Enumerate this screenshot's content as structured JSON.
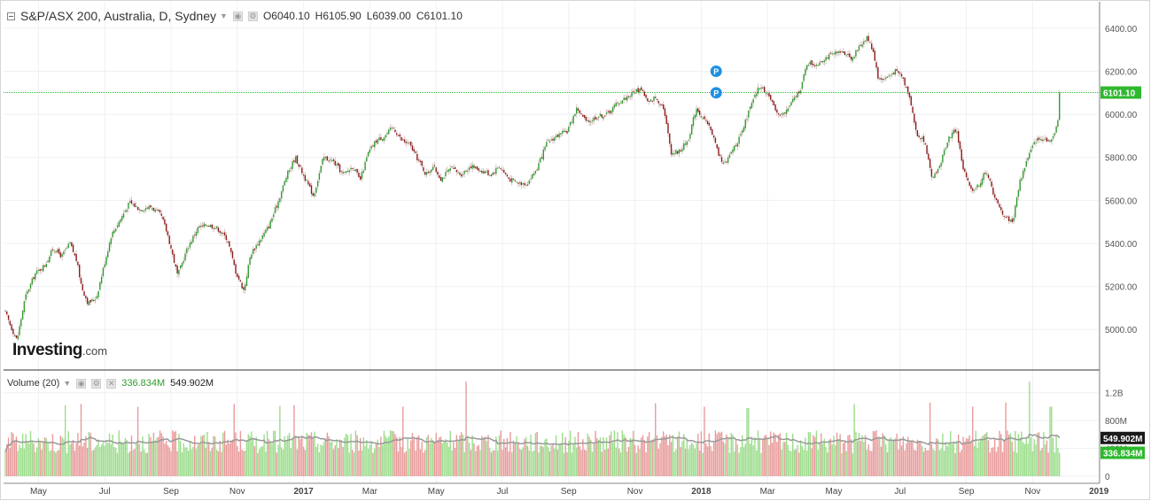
{
  "header": {
    "title": "S&P/ASX 200, Australia, D, Sydney",
    "ohlc": [
      {
        "label": "O",
        "value": "6040.10"
      },
      {
        "label": "H",
        "value": "6105.90"
      },
      {
        "label": "L",
        "value": "6039.00"
      },
      {
        "label": "C",
        "value": "6101.10"
      }
    ]
  },
  "volume_legend": {
    "title": "Volume (20)",
    "value_a": "336.834M",
    "value_b": "549.902M"
  },
  "logo": {
    "main": "Investing",
    "suffix": ".com"
  },
  "colors": {
    "up": "#2e9b2e",
    "down": "#8b1a1a",
    "vol_up": "#9bdc8b",
    "vol_down": "#e89a9a",
    "ma_line": "#999999",
    "last_price_line": "#2eb82e",
    "marker": "#1e90e0"
  },
  "chart_data": [
    {
      "type": "candlestick",
      "title": "S&P/ASX 200, Australia, D, Sydney",
      "x_labels": [
        "May",
        "Jul",
        "Sep",
        "Nov",
        "2017",
        "Mar",
        "May",
        "Jul",
        "Sep",
        "Nov",
        "2018",
        "Mar",
        "May",
        "Jul",
        "Sep",
        "Nov",
        "2019"
      ],
      "x_labels_bold": [
        "2017",
        "2018",
        "2019"
      ],
      "y_ticks": [
        5000,
        5200,
        5400,
        5600,
        5800,
        6000,
        6200,
        6400
      ],
      "y_tick_labels": [
        "5000.00",
        "5200.00",
        "5400.00",
        "5600.00",
        "5800.00",
        "6000.00",
        "6200.00",
        "6400.00"
      ],
      "ylim": [
        4820,
        6490
      ],
      "grid": true,
      "last_price": 6101.1,
      "last_price_label": "6101.10",
      "markers": [
        {
          "label": "P",
          "month_index": 21.45,
          "price": 6200
        },
        {
          "label": "P",
          "month_index": 21.45,
          "price": 6100
        }
      ],
      "price_path": [
        [
          0.0,
          5080
        ],
        [
          0.15,
          5020
        ],
        [
          0.35,
          4950
        ],
        [
          0.6,
          5150
        ],
        [
          0.9,
          5260
        ],
        [
          1.2,
          5300
        ],
        [
          1.45,
          5380
        ],
        [
          1.7,
          5340
        ],
        [
          1.95,
          5400
        ],
        [
          2.15,
          5320
        ],
        [
          2.3,
          5200
        ],
        [
          2.5,
          5120
        ],
        [
          2.75,
          5150
        ],
        [
          2.95,
          5280
        ],
        [
          3.2,
          5440
        ],
        [
          3.5,
          5520
        ],
        [
          3.75,
          5590
        ],
        [
          4.05,
          5560
        ],
        [
          4.4,
          5570
        ],
        [
          4.7,
          5530
        ],
        [
          4.9,
          5440
        ],
        [
          5.2,
          5250
        ],
        [
          5.5,
          5380
        ],
        [
          5.8,
          5470
        ],
        [
          6.1,
          5490
        ],
        [
          6.4,
          5470
        ],
        [
          6.7,
          5420
        ],
        [
          6.95,
          5270
        ],
        [
          7.2,
          5180
        ],
        [
          7.4,
          5350
        ],
        [
          7.7,
          5420
        ],
        [
          7.95,
          5480
        ],
        [
          8.2,
          5580
        ],
        [
          8.5,
          5720
        ],
        [
          8.75,
          5800
        ],
        [
          9.05,
          5700
        ],
        [
          9.3,
          5620
        ],
        [
          9.6,
          5800
        ],
        [
          9.9,
          5780
        ],
        [
          10.2,
          5720
        ],
        [
          10.5,
          5760
        ],
        [
          10.7,
          5690
        ],
        [
          10.95,
          5820
        ],
        [
          11.2,
          5880
        ],
        [
          11.45,
          5900
        ],
        [
          11.7,
          5940
        ],
        [
          11.95,
          5880
        ],
        [
          12.2,
          5860
        ],
        [
          12.45,
          5790
        ],
        [
          12.7,
          5720
        ],
        [
          12.9,
          5760
        ],
        [
          13.15,
          5700
        ],
        [
          13.45,
          5750
        ],
        [
          13.75,
          5720
        ],
        [
          14.05,
          5760
        ],
        [
          14.35,
          5740
        ],
        [
          14.65,
          5720
        ],
        [
          14.9,
          5760
        ],
        [
          15.2,
          5700
        ],
        [
          15.5,
          5680
        ],
        [
          15.75,
          5680
        ],
        [
          16.05,
          5750
        ],
        [
          16.35,
          5870
        ],
        [
          16.65,
          5900
        ],
        [
          16.95,
          5920
        ],
        [
          17.25,
          6030
        ],
        [
          17.55,
          5960
        ],
        [
          17.85,
          5990
        ],
        [
          18.15,
          6000
        ],
        [
          18.45,
          6050
        ],
        [
          18.75,
          6080
        ],
        [
          19.05,
          6110
        ],
        [
          19.2,
          6120
        ],
        [
          19.4,
          6050
        ],
        [
          19.6,
          6080
        ],
        [
          19.85,
          6040
        ],
        [
          20.1,
          5820
        ],
        [
          20.35,
          5830
        ],
        [
          20.6,
          5880
        ],
        [
          20.85,
          6030
        ],
        [
          21.1,
          5970
        ],
        [
          21.3,
          5930
        ],
        [
          21.55,
          5800
        ],
        [
          21.75,
          5770
        ],
        [
          21.95,
          5840
        ],
        [
          22.2,
          5900
        ],
        [
          22.45,
          6020
        ],
        [
          22.75,
          6130
        ],
        [
          23.0,
          6100
        ],
        [
          23.25,
          6010
        ],
        [
          23.5,
          6000
        ],
        [
          23.75,
          6060
        ],
        [
          24.0,
          6120
        ],
        [
          24.2,
          6240
        ],
        [
          24.45,
          6230
        ],
        [
          24.7,
          6260
        ],
        [
          25.0,
          6280
        ],
        [
          25.3,
          6290
        ],
        [
          25.55,
          6260
        ],
        [
          25.8,
          6320
        ],
        [
          26.0,
          6360
        ],
        [
          26.2,
          6290
        ],
        [
          26.35,
          6160
        ],
        [
          26.6,
          6170
        ],
        [
          26.85,
          6200
        ],
        [
          27.05,
          6180
        ],
        [
          27.3,
          6080
        ],
        [
          27.5,
          5900
        ],
        [
          27.75,
          5880
        ],
        [
          27.95,
          5700
        ],
        [
          28.2,
          5760
        ],
        [
          28.45,
          5890
        ],
        [
          28.7,
          5930
        ],
        [
          28.9,
          5750
        ],
        [
          29.15,
          5640
        ],
        [
          29.4,
          5680
        ],
        [
          29.6,
          5740
        ],
        [
          29.8,
          5640
        ],
        [
          30.0,
          5560
        ],
        [
          30.2,
          5520
        ],
        [
          30.4,
          5500
        ],
        [
          30.6,
          5680
        ],
        [
          30.85,
          5800
        ],
        [
          31.1,
          5880
        ],
        [
          31.35,
          5890
        ],
        [
          31.55,
          5870
        ],
        [
          31.75,
          5960
        ],
        [
          31.85,
          6101
        ]
      ]
    },
    {
      "type": "bar",
      "title": "Volume (20)",
      "y_ticks": [
        0,
        400000000,
        800000000,
        1200000000
      ],
      "y_tick_labels": [
        "0",
        "400M",
        "800M",
        "1.2B"
      ],
      "ylim": [
        0,
        1400000000
      ],
      "value_labels": [
        "549.902M",
        "336.834M"
      ],
      "latest_volume": 336834000,
      "latest_ma": 549902000,
      "typical_volume": 600000000,
      "spikes": [
        {
          "month_index": 1.8,
          "value": 1020000000
        },
        {
          "month_index": 2.3,
          "value": 1040000000
        },
        {
          "month_index": 4.0,
          "value": 1000000000
        },
        {
          "month_index": 6.9,
          "value": 1040000000
        },
        {
          "month_index": 8.3,
          "value": 1010000000
        },
        {
          "month_index": 8.7,
          "value": 1020000000
        },
        {
          "month_index": 12.0,
          "value": 1000000000
        },
        {
          "month_index": 13.9,
          "value": 1360000000
        },
        {
          "month_index": 19.6,
          "value": 1050000000
        },
        {
          "month_index": 21.1,
          "value": 1000000000
        },
        {
          "month_index": 22.4,
          "value": 980000000
        },
        {
          "month_index": 25.6,
          "value": 1040000000
        },
        {
          "month_index": 27.9,
          "value": 1060000000
        },
        {
          "month_index": 29.2,
          "value": 1000000000
        },
        {
          "month_index": 30.2,
          "value": 1060000000
        },
        {
          "month_index": 30.9,
          "value": 1360000000
        },
        {
          "month_index": 31.55,
          "value": 1000000000
        }
      ]
    }
  ]
}
